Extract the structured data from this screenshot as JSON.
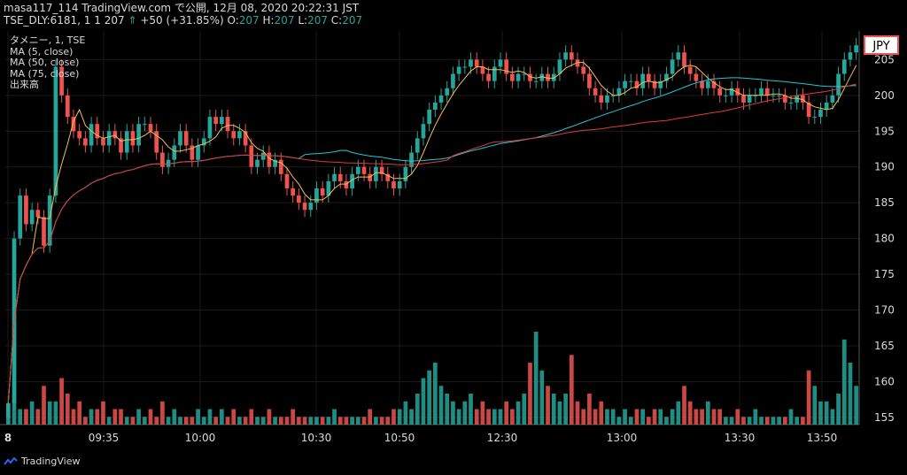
{
  "header": {
    "line1": "masa117_114 TradingView.com で公開, 12月 08, 2020 20:22:31 JST",
    "symbol": "TSE_DLY:6181, 1",
    "price": "1 207",
    "arrow": "⇑",
    "change": "+50 (+31.85%)",
    "o_label": "O:",
    "o_val": "207",
    "h_label": "H:",
    "h_val": "207",
    "l_label": "L:",
    "l_val": "207",
    "c_label": "C:",
    "c_val": "207"
  },
  "legend": {
    "title": "タメニー, 1, TSE",
    "ma5": "MA (5, close)",
    "ma50": "MA (50, close)",
    "ma75": "MA (75, close)",
    "volume": "出来高"
  },
  "currency_badge": "JPY",
  "footer": {
    "brand": "TradingView"
  },
  "colors": {
    "up": "#26a69a",
    "down": "#ef5350",
    "ma5": "#f0c05a",
    "ma50": "#26c6da",
    "ma75": "#e53935",
    "grid": "#1a1a1a",
    "axis_text": "#d9d9d9"
  },
  "chart_data": {
    "type": "candlestick",
    "x_tick_labels": [
      "8",
      "09:35",
      "10:00",
      "10:30",
      "10:50",
      "12:30",
      "13:00",
      "13:30",
      "13:50"
    ],
    "y_ticks": [
      155,
      160,
      165,
      170,
      175,
      180,
      185,
      190,
      195,
      200,
      205
    ],
    "ylim": [
      154,
      209
    ],
    "grid": true,
    "close": [
      157,
      180,
      186,
      182,
      184,
      183,
      179,
      186,
      204,
      200,
      197,
      195,
      194,
      193,
      196,
      194,
      193,
      195,
      194,
      192,
      195,
      193,
      196,
      196,
      195,
      192,
      190,
      191,
      193,
      195,
      193,
      191,
      193,
      194,
      197,
      196,
      197,
      195,
      194,
      195,
      193,
      190,
      191,
      192,
      190,
      191,
      189,
      187,
      186,
      185,
      184,
      185,
      187,
      186,
      188,
      189,
      188,
      187,
      189,
      190,
      189,
      188,
      190,
      189,
      188,
      187,
      188,
      190,
      192,
      194,
      196,
      198,
      199,
      200,
      201,
      203,
      204,
      204,
      205,
      204,
      203,
      202,
      204,
      205,
      203,
      202,
      203,
      203,
      202,
      202,
      203,
      202,
      203,
      205,
      206,
      205,
      204,
      203,
      201,
      200,
      199,
      200,
      200,
      201,
      202,
      202,
      201,
      203,
      202,
      201,
      202,
      203,
      205,
      206,
      204,
      203,
      202,
      201,
      202,
      201,
      200,
      200,
      201,
      200,
      199,
      200,
      200,
      201,
      200,
      200,
      200,
      199,
      199,
      200,
      199,
      197,
      197,
      198,
      199,
      200,
      203,
      205,
      206,
      207
    ],
    "series": [
      {
        "name": "MA (5, close)"
      },
      {
        "name": "MA (50, close)"
      },
      {
        "name": "MA (75, close)"
      }
    ],
    "volume": [
      1,
      3,
      2,
      2,
      3,
      2,
      5,
      3,
      3,
      6,
      4,
      2,
      3,
      1,
      2,
      2,
      3,
      1,
      2,
      2,
      1,
      1,
      2,
      1,
      2,
      1,
      3,
      1,
      2,
      1,
      1,
      1,
      2,
      1,
      2,
      1,
      2,
      1,
      2,
      1,
      1,
      2,
      1,
      1,
      2,
      1,
      1,
      1,
      2,
      1,
      1,
      1,
      1,
      1,
      1,
      2,
      1,
      1,
      1,
      1,
      1,
      2,
      1,
      1,
      1,
      2,
      2,
      3,
      2,
      4,
      6,
      7,
      8,
      5,
      4,
      3,
      2,
      3,
      4,
      2,
      3,
      2,
      2,
      2,
      3,
      2,
      3,
      4,
      8,
      12,
      7,
      5,
      4,
      3,
      4,
      9,
      3,
      2,
      4,
      2,
      3,
      2,
      2,
      1,
      2,
      1,
      2,
      2,
      1,
      2,
      2,
      1,
      2,
      3,
      5,
      3,
      2,
      2,
      3,
      2,
      2,
      1,
      1,
      2,
      1,
      1,
      2,
      1,
      1,
      1,
      1,
      1,
      2,
      1,
      1,
      7,
      5,
      3,
      3,
      2,
      4,
      11,
      8,
      5
    ]
  }
}
